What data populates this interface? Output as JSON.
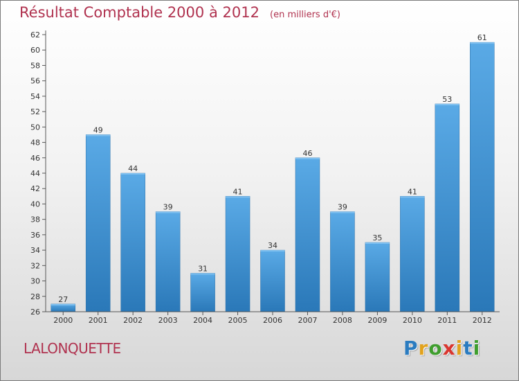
{
  "chart_data": {
    "type": "bar",
    "title": "Résultat Comptable 2000 à 2012",
    "subtitle": "(en milliers d'€)",
    "categories": [
      "2000",
      "2001",
      "2002",
      "2003",
      "2004",
      "2005",
      "2006",
      "2007",
      "2008",
      "2009",
      "2010",
      "2011",
      "2012"
    ],
    "values": [
      27,
      49,
      44,
      39,
      31,
      41,
      34,
      46,
      39,
      35,
      41,
      53,
      61
    ],
    "ylim": [
      26,
      62
    ],
    "ytick_step": 2,
    "grid": false,
    "xlabel": "",
    "ylabel": "",
    "colors": {
      "bar_light": "#5aaae6",
      "bar_dark": "#2a78b8",
      "axis": "#555555"
    }
  },
  "footer": {
    "town_name": "LALONQUETTE",
    "logo_letters": [
      {
        "ch": "P",
        "color": "#2b7cc0"
      },
      {
        "ch": "r",
        "color": "#e1a21d"
      },
      {
        "ch": "o",
        "color": "#3f9e2e"
      },
      {
        "ch": "x",
        "color": "#d9362f"
      },
      {
        "ch": "i",
        "color": "#e1a21d"
      },
      {
        "ch": "t",
        "color": "#2b7cc0"
      },
      {
        "ch": "i",
        "color": "#3f9e2e"
      }
    ]
  }
}
